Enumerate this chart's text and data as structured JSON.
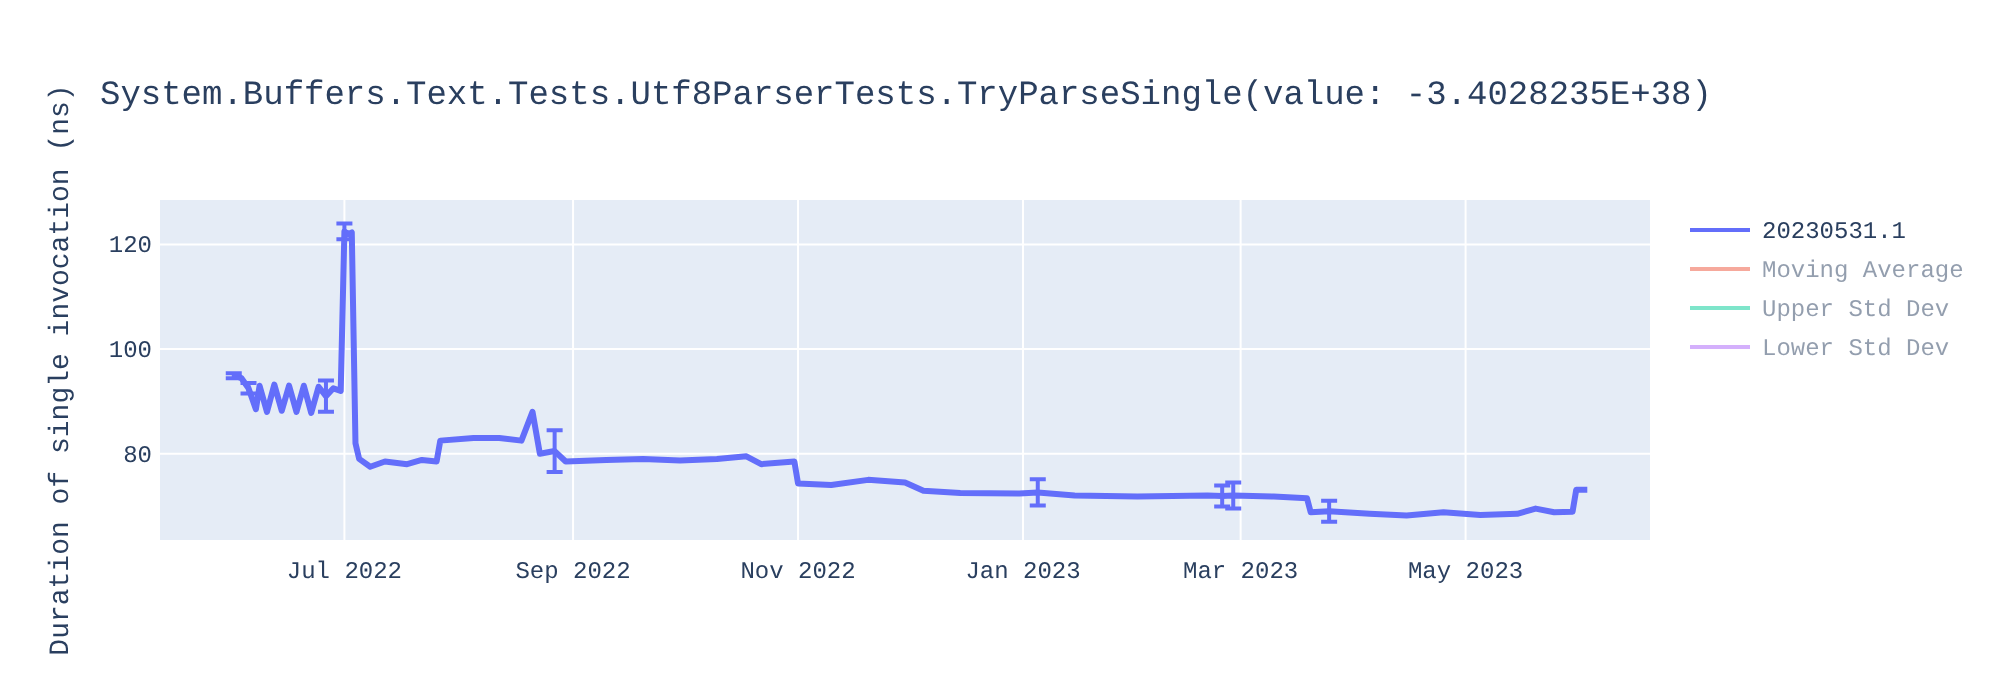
{
  "chart_data": {
    "type": "line",
    "title": "System.Buffers.Text.Tests.Utf8ParserTests.TryParseSingle(value: -3.4028235E+38)",
    "ylabel": "Duration of single invocation (ns)",
    "x": [
      "2022-06-01",
      "2022-06-03",
      "2022-06-05",
      "2022-06-07",
      "2022-06-08",
      "2022-06-10",
      "2022-06-12",
      "2022-06-14",
      "2022-06-16",
      "2022-06-18",
      "2022-06-20",
      "2022-06-22",
      "2022-06-24",
      "2022-06-26",
      "2022-06-28",
      "2022-06-30",
      "2022-07-01",
      "2022-07-02",
      "2022-07-03",
      "2022-07-04",
      "2022-07-05",
      "2022-07-08",
      "2022-07-12",
      "2022-07-18",
      "2022-07-22",
      "2022-07-26",
      "2022-07-27",
      "2022-08-05",
      "2022-08-12",
      "2022-08-18",
      "2022-08-21",
      "2022-08-23",
      "2022-08-27",
      "2022-08-30",
      "2022-09-10",
      "2022-09-20",
      "2022-09-30",
      "2022-10-10",
      "2022-10-18",
      "2022-10-22",
      "2022-10-31",
      "2022-11-01",
      "2022-11-10",
      "2022-11-20",
      "2022-11-30",
      "2022-12-05",
      "2022-12-15",
      "2022-12-31",
      "2023-01-05",
      "2023-01-15",
      "2023-02-01",
      "2023-02-20",
      "2023-02-24",
      "2023-02-27",
      "2023-03-10",
      "2023-03-19",
      "2023-03-20",
      "2023-03-25",
      "2023-04-05",
      "2023-04-15",
      "2023-04-25",
      "2023-05-05",
      "2023-05-15",
      "2023-05-20",
      "2023-05-25",
      "2023-05-30",
      "2023-05-31",
      "2023-06-03"
    ],
    "series": [
      {
        "name": "20230531.1",
        "color": "#636efa",
        "values": [
          94.9,
          94.5,
          92.5,
          88.5,
          93,
          88,
          93.2,
          88.2,
          93,
          88,
          93,
          87.8,
          92.8,
          91,
          92.5,
          92,
          122.5,
          122,
          122.3,
          82,
          79,
          77.5,
          78.5,
          78,
          78.8,
          78.5,
          82.5,
          83,
          83,
          82.5,
          88,
          80,
          80.5,
          78.5,
          78.8,
          79,
          78.7,
          79,
          79.5,
          78,
          78.5,
          74.3,
          74,
          75,
          74.5,
          72.9,
          72.5,
          72.4,
          72.6,
          72,
          71.8,
          72,
          71.9,
          72,
          71.8,
          71.5,
          68.8,
          69,
          68.5,
          68.2,
          68.8,
          68.3,
          68.5,
          69.5,
          68.8,
          68.9,
          73.1,
          73.1
        ],
        "errors": [
          0.5,
          null,
          1,
          null,
          null,
          null,
          null,
          null,
          null,
          null,
          null,
          null,
          null,
          3,
          null,
          null,
          1.5,
          null,
          null,
          null,
          null,
          null,
          null,
          null,
          null,
          null,
          null,
          null,
          null,
          null,
          null,
          null,
          4,
          null,
          null,
          null,
          null,
          null,
          null,
          null,
          null,
          null,
          null,
          null,
          null,
          null,
          null,
          null,
          2.5,
          null,
          null,
          null,
          2,
          2.5,
          null,
          null,
          null,
          2,
          null,
          null,
          null,
          null,
          null,
          null,
          null,
          null,
          null,
          null
        ]
      },
      {
        "name": "Moving Average",
        "color": "#ef553b",
        "values": [
          null,
          null,
          null,
          null,
          null,
          null,
          null,
          null,
          null,
          null,
          null,
          null,
          null,
          null,
          null,
          null,
          null,
          null,
          null,
          null,
          null,
          null,
          null,
          null,
          null,
          null,
          null,
          null,
          null,
          null,
          null,
          null,
          null,
          null,
          null,
          null,
          null,
          null,
          null,
          null,
          null,
          null,
          null,
          null,
          null,
          null,
          null,
          null,
          null,
          null,
          null,
          null,
          null,
          null,
          null,
          null,
          null,
          null,
          null,
          null,
          null,
          null,
          null,
          null,
          null,
          null,
          null,
          null
        ]
      },
      {
        "name": "Upper Std Dev",
        "color": "#00cc96",
        "values": [
          null,
          null,
          null,
          null,
          null,
          null,
          null,
          null,
          null,
          null,
          null,
          null,
          null,
          null,
          null,
          null,
          null,
          null,
          null,
          null,
          null,
          null,
          null,
          null,
          null,
          null,
          null,
          null,
          null,
          null,
          null,
          null,
          null,
          null,
          null,
          null,
          null,
          null,
          null,
          null,
          null,
          null,
          null,
          null,
          null,
          null,
          null,
          null,
          null,
          null,
          null,
          null,
          null,
          null,
          null,
          null,
          null,
          null,
          null,
          null,
          null,
          null,
          null,
          null,
          null,
          null,
          null,
          null
        ]
      },
      {
        "name": "Lower Std Dev",
        "color": "#ab63fa",
        "values": [
          null,
          null,
          null,
          null,
          null,
          null,
          null,
          null,
          null,
          null,
          null,
          null,
          null,
          null,
          null,
          null,
          null,
          null,
          null,
          null,
          null,
          null,
          null,
          null,
          null,
          null,
          null,
          null,
          null,
          null,
          null,
          null,
          null,
          null,
          null,
          null,
          null,
          null,
          null,
          null,
          null,
          null,
          null,
          null,
          null,
          null,
          null,
          null,
          null,
          null,
          null,
          null,
          null,
          null,
          null,
          null,
          null,
          null,
          null,
          null,
          null,
          null,
          null,
          null,
          null,
          null,
          null,
          null
        ]
      }
    ],
    "xlim": [
      "2022-05-12",
      "2023-06-20"
    ],
    "xticks": [
      {
        "value": "2022-07-01",
        "label": "Jul 2022"
      },
      {
        "value": "2022-09-01",
        "label": "Sep 2022"
      },
      {
        "value": "2022-11-01",
        "label": "Nov 2022"
      },
      {
        "value": "2023-01-01",
        "label": "Jan 2023"
      },
      {
        "value": "2023-03-01",
        "label": "Mar 2023"
      },
      {
        "value": "2023-05-01",
        "label": "May 2023"
      }
    ],
    "ylim": [
      63.5,
      128.5
    ],
    "yticks": [
      80,
      100,
      120
    ],
    "grid": true,
    "legend": "right",
    "marker": "none",
    "line_style": "solid"
  }
}
